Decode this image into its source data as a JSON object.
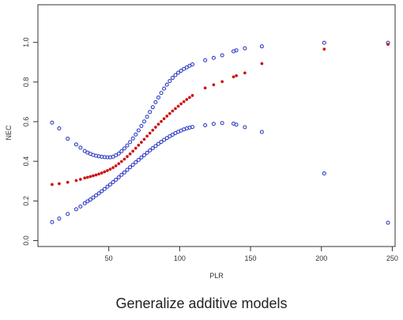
{
  "caption": "Generalize additive models",
  "colors": {
    "ci": "#1f2fbf",
    "fit": "#cc1111",
    "axis": "#333333"
  },
  "chart_data": {
    "type": "scatter",
    "xlabel": "PLR",
    "ylabel": "NEC",
    "xlim": [
      0,
      252
    ],
    "ylim": [
      -0.03,
      1.19
    ],
    "x_ticks": [
      50,
      100,
      150,
      200,
      250
    ],
    "y_ticks": [
      0.0,
      0.2,
      0.4,
      0.6,
      0.8,
      1.0
    ],
    "x_tick_labels": [
      "50",
      "100",
      "150",
      "200",
      "250"
    ],
    "y_tick_labels": [
      "0.0",
      "0.2",
      "0.4",
      "0.6",
      "0.8",
      "1.0"
    ],
    "series": [
      {
        "role": "upper",
        "marker": "open-circle",
        "color": "#1f2fbf",
        "x": [
          10,
          15,
          21,
          27,
          30,
          33,
          35,
          37,
          39,
          41,
          43,
          45,
          47,
          49,
          51,
          53,
          55,
          57,
          59,
          61,
          63,
          65,
          67,
          69,
          71,
          73,
          75,
          77,
          79,
          81,
          83,
          85,
          87,
          89,
          91,
          93,
          95,
          97,
          99,
          101,
          103,
          105,
          107,
          109,
          118,
          124,
          130,
          138,
          140,
          146,
          158,
          202,
          247
        ],
        "y": [
          0.595,
          0.566,
          0.514,
          0.485,
          0.469,
          0.452,
          0.444,
          0.438,
          0.432,
          0.428,
          0.425,
          0.423,
          0.421,
          0.42,
          0.42,
          0.423,
          0.43,
          0.439,
          0.451,
          0.465,
          0.48,
          0.497,
          0.515,
          0.535,
          0.556,
          0.578,
          0.601,
          0.625,
          0.649,
          0.673,
          0.698,
          0.722,
          0.745,
          0.767,
          0.787,
          0.805,
          0.821,
          0.835,
          0.847,
          0.857,
          0.866,
          0.874,
          0.882,
          0.889,
          0.91,
          0.922,
          0.935,
          0.955,
          0.96,
          0.97,
          0.98,
          0.998,
          0.998
        ]
      },
      {
        "role": "fit",
        "marker": "filled-dot",
        "color": "#cc1111",
        "x": [
          10,
          15,
          21,
          27,
          30,
          33,
          35,
          37,
          39,
          41,
          43,
          45,
          47,
          49,
          51,
          53,
          55,
          57,
          59,
          61,
          63,
          65,
          67,
          69,
          71,
          73,
          75,
          77,
          79,
          81,
          83,
          85,
          87,
          89,
          91,
          93,
          95,
          97,
          99,
          101,
          103,
          105,
          107,
          109,
          118,
          124,
          130,
          138,
          140,
          146,
          158,
          202,
          247
        ],
        "y": [
          0.283,
          0.287,
          0.294,
          0.303,
          0.309,
          0.316,
          0.319,
          0.323,
          0.327,
          0.331,
          0.336,
          0.341,
          0.347,
          0.353,
          0.36,
          0.368,
          0.377,
          0.388,
          0.399,
          0.411,
          0.424,
          0.437,
          0.451,
          0.466,
          0.481,
          0.496,
          0.511,
          0.527,
          0.542,
          0.557,
          0.572,
          0.587,
          0.601,
          0.615,
          0.628,
          0.641,
          0.654,
          0.666,
          0.678,
          0.69,
          0.701,
          0.712,
          0.722,
          0.732,
          0.77,
          0.786,
          0.802,
          0.826,
          0.832,
          0.846,
          0.893,
          0.966,
          0.99
        ]
      },
      {
        "role": "lower",
        "marker": "open-circle",
        "color": "#1f2fbf",
        "x": [
          10,
          15,
          21,
          27,
          30,
          33,
          35,
          37,
          39,
          41,
          43,
          45,
          47,
          49,
          51,
          53,
          55,
          57,
          59,
          61,
          63,
          65,
          67,
          69,
          71,
          73,
          75,
          77,
          79,
          81,
          83,
          85,
          87,
          89,
          91,
          93,
          95,
          97,
          99,
          101,
          103,
          105,
          107,
          109,
          118,
          124,
          130,
          138,
          140,
          146,
          158,
          202,
          247
        ],
        "y": [
          0.093,
          0.111,
          0.134,
          0.158,
          0.172,
          0.188,
          0.198,
          0.207,
          0.217,
          0.228,
          0.238,
          0.249,
          0.26,
          0.272,
          0.283,
          0.295,
          0.307,
          0.319,
          0.332,
          0.344,
          0.357,
          0.37,
          0.382,
          0.395,
          0.407,
          0.419,
          0.431,
          0.443,
          0.455,
          0.466,
          0.477,
          0.488,
          0.498,
          0.508,
          0.517,
          0.526,
          0.534,
          0.542,
          0.549,
          0.555,
          0.561,
          0.566,
          0.57,
          0.573,
          0.582,
          0.589,
          0.593,
          0.59,
          0.585,
          0.572,
          0.548,
          0.339,
          0.09
        ]
      }
    ]
  }
}
